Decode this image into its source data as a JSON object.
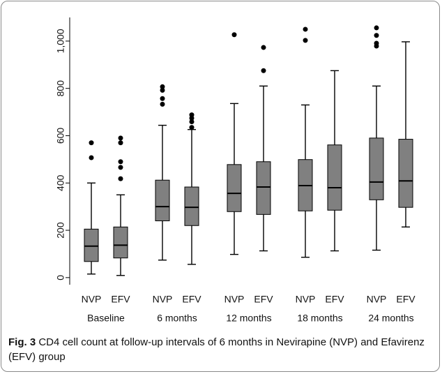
{
  "chart_data": {
    "type": "box",
    "categories": [
      "Baseline",
      "6 months",
      "12 months",
      "18 months",
      "24 months"
    ],
    "series": [
      {
        "name": "NVP",
        "color": "#808080",
        "boxes": [
          {
            "min": 15,
            "q1": 68,
            "median": 133,
            "q3": 205,
            "max": 400,
            "outliers": [
              507,
              570
            ]
          },
          {
            "min": 74,
            "q1": 240,
            "median": 300,
            "q3": 412,
            "max": 644,
            "outliers": [
              733,
              757,
              792,
              807
            ]
          },
          {
            "min": 98,
            "q1": 279,
            "median": 356,
            "q3": 478,
            "max": 736,
            "outliers": [
              1027
            ]
          },
          {
            "min": 86,
            "q1": 282,
            "median": 389,
            "q3": 499,
            "max": 730,
            "outliers": [
              1003,
              1050
            ]
          },
          {
            "min": 116,
            "q1": 329,
            "median": 404,
            "q3": 590,
            "max": 810,
            "outliers": [
              979,
              991,
              1024,
              1056
            ]
          }
        ]
      },
      {
        "name": "EFV",
        "color": "#808080",
        "boxes": [
          {
            "min": 9,
            "q1": 83,
            "median": 137,
            "q3": 214,
            "max": 350,
            "outliers": [
              418,
              466,
              490,
              570,
              590
            ]
          },
          {
            "min": 56,
            "q1": 220,
            "median": 297,
            "q3": 383,
            "max": 626,
            "outliers": [
              635,
              659,
              674,
              688
            ]
          },
          {
            "min": 113,
            "q1": 267,
            "median": 383,
            "q3": 490,
            "max": 810,
            "outliers": [
              875,
              973
            ]
          },
          {
            "min": 113,
            "q1": 285,
            "median": 380,
            "q3": 561,
            "max": 875,
            "outliers": []
          },
          {
            "min": 214,
            "q1": 297,
            "median": 409,
            "q3": 585,
            "max": 997,
            "outliers": []
          }
        ]
      }
    ],
    "ylim": [
      -30,
      1100
    ],
    "yticks": [
      0,
      200,
      400,
      600,
      800,
      {
        "value": 1000,
        "label": "1,000"
      }
    ],
    "caption": {
      "label": "Fig. 3",
      "text": "CD4 cell count at follow-up intervals of 6 months in Nevirapine (NVP) and Efavirenz (EFV) group"
    }
  }
}
